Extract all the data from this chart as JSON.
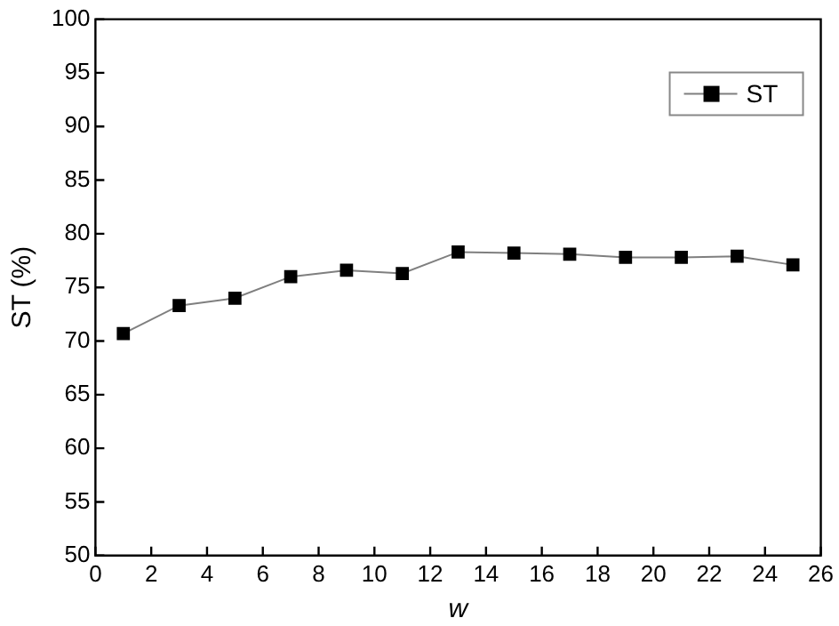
{
  "chart_data": {
    "type": "line",
    "xlabel": "w",
    "ylabel": "ST (%)",
    "x": [
      1,
      3,
      5,
      7,
      9,
      11,
      13,
      15,
      17,
      19,
      21,
      23,
      25
    ],
    "series": [
      {
        "name": "ST",
        "color": "#000000",
        "values": [
          70.7,
          73.3,
          74.0,
          76.0,
          76.6,
          76.3,
          78.3,
          78.2,
          78.1,
          77.8,
          77.8,
          77.9,
          77.1
        ]
      }
    ],
    "xlim": [
      0,
      26
    ],
    "xticks": [
      0,
      2,
      4,
      6,
      8,
      10,
      12,
      14,
      16,
      18,
      20,
      22,
      24,
      26
    ],
    "ylim": [
      50,
      100
    ],
    "yticks": [
      50,
      55,
      60,
      65,
      70,
      75,
      80,
      85,
      90,
      95,
      100
    ],
    "grid": false,
    "legend": "top right",
    "marker": "square",
    "line_style": "solid"
  }
}
